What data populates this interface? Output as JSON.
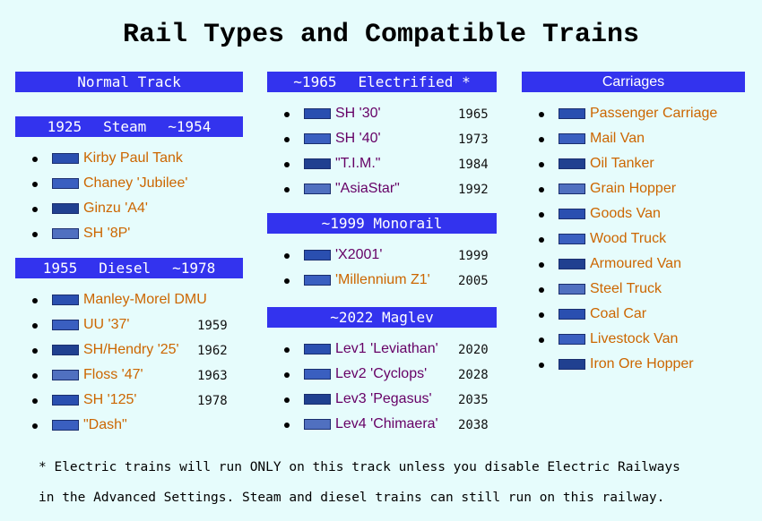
{
  "title": "Rail Types and Compatible Trains",
  "columns": [
    {
      "sections": [
        {
          "header": [
            "Normal Track"
          ],
          "items": []
        },
        {
          "header": [
            "1925",
            "Steam",
            "~1954"
          ],
          "items": [
            {
              "name": "Kirby Paul Tank",
              "color": "#cc6600"
            },
            {
              "name": "Chaney 'Jubilee'",
              "color": "#cc6600"
            },
            {
              "name": "Ginzu 'A4'",
              "color": "#cc6600"
            },
            {
              "name": "SH '8P'",
              "color": "#cc6600"
            }
          ]
        },
        {
          "header": [
            "1955",
            "Diesel",
            "~1978"
          ],
          "items": [
            {
              "name": "Manley-Morel DMU",
              "color": "#cc6600"
            },
            {
              "name": "UU '37'",
              "year": "1959",
              "color": "#cc6600"
            },
            {
              "name": "SH/Hendry '25'",
              "year": "1962",
              "color": "#cc6600"
            },
            {
              "name": "Floss '47'",
              "year": "1963",
              "color": "#cc6600"
            },
            {
              "name": "SH '125'",
              "year": "1978",
              "color": "#cc6600"
            },
            {
              "name": "\"Dash\"",
              "color": "#cc6600"
            }
          ]
        }
      ]
    },
    {
      "sections": [
        {
          "header": [
            "~1965",
            "Electrified *"
          ],
          "items": [
            {
              "name": "SH '30'",
              "year": "1965",
              "color": "#660066"
            },
            {
              "name": "SH '40'",
              "year": "1973",
              "color": "#660066"
            },
            {
              "name": "\"T.I.M.\"",
              "year": "1984",
              "color": "#660066"
            },
            {
              "name": "\"AsiaStar\"",
              "year": "1992",
              "color": "#660066"
            }
          ]
        },
        {
          "header": [
            "~1999 Monorail"
          ],
          "items": [
            {
              "name": "'X2001'",
              "year": "1999",
              "color": "#660066"
            },
            {
              "name": "'Millennium Z1'",
              "year": "2005",
              "color": "#cc6600"
            }
          ]
        },
        {
          "header": [
            "~2022 Maglev"
          ],
          "items": [
            {
              "name": "Lev1 'Leviathan'",
              "year": "2020",
              "color": "#660066"
            },
            {
              "name": "Lev2 'Cyclops'",
              "year": "2028",
              "color": "#660066"
            },
            {
              "name": "Lev3 'Pegasus'",
              "year": "2035",
              "color": "#660066"
            },
            {
              "name": "Lev4 'Chimaera'",
              "year": "2038",
              "color": "#660066"
            }
          ]
        }
      ]
    },
    {
      "sections": [
        {
          "header": [
            "Carriages"
          ],
          "items": [
            {
              "name": "Passenger Carriage",
              "color": "#cc6600"
            },
            {
              "name": "Mail Van",
              "color": "#cc6600"
            },
            {
              "name": "Oil Tanker",
              "color": "#cc6600"
            },
            {
              "name": "Grain Hopper",
              "color": "#cc6600"
            },
            {
              "name": "Goods Van",
              "color": "#cc6600"
            },
            {
              "name": "Wood Truck",
              "color": "#cc6600"
            },
            {
              "name": "Armoured Van",
              "color": "#cc6600"
            },
            {
              "name": "Steel Truck",
              "color": "#cc6600"
            },
            {
              "name": "Coal Car",
              "color": "#cc6600"
            },
            {
              "name": "Livestock Van",
              "color": "#cc6600"
            },
            {
              "name": "Iron Ore Hopper",
              "color": "#cc6600"
            }
          ]
        }
      ]
    }
  ],
  "footnote": [
    "* Electric trains will run ONLY on this track unless you disable Electric Railways",
    "in the Advanced Settings. Steam and diesel trains can still run on this railway."
  ]
}
